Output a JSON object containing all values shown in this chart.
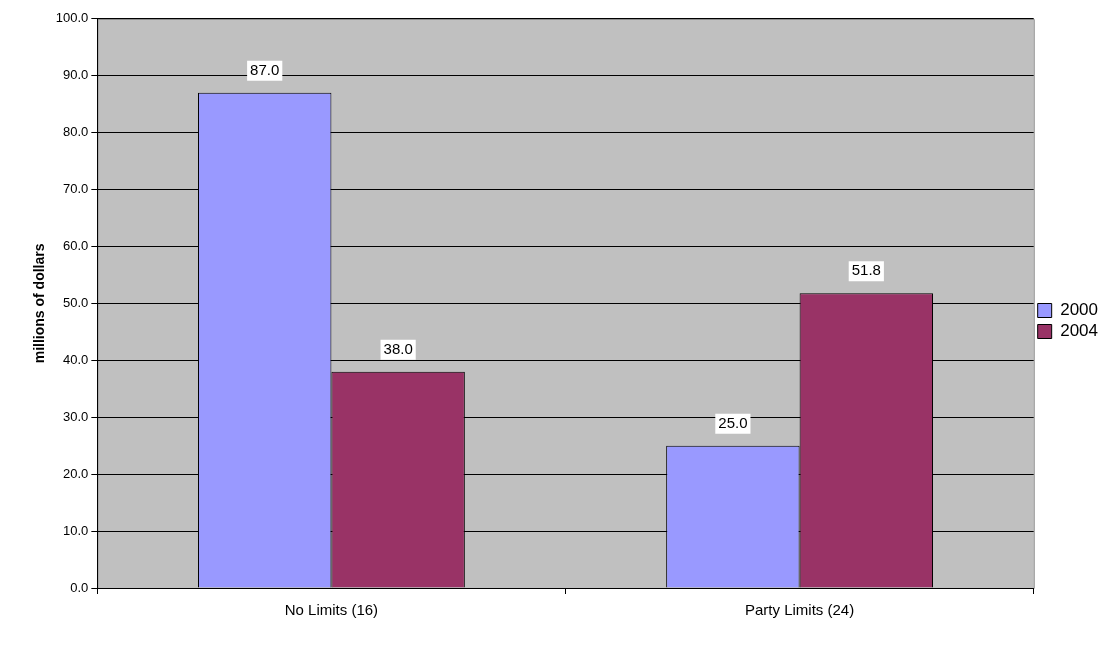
{
  "chart_data": {
    "type": "bar",
    "ylabel": "millions of dollars",
    "categories": [
      "No Limits (16)",
      "Party Limits (24)"
    ],
    "series": [
      {
        "name": "2000",
        "color": "#9999ff",
        "values": [
          87.0,
          25.0
        ],
        "value_labels": [
          "87.0",
          "25.0"
        ]
      },
      {
        "name": "2004",
        "color": "#993366",
        "values": [
          38.0,
          51.8
        ],
        "value_labels": [
          "38.0",
          "51.8"
        ]
      }
    ],
    "ylim": [
      0,
      100
    ],
    "yticks": [
      {
        "value": 0,
        "label": "0.0"
      },
      {
        "value": 10,
        "label": "10.0"
      },
      {
        "value": 20,
        "label": "20.0"
      },
      {
        "value": 30,
        "label": "30.0"
      },
      {
        "value": 40,
        "label": "40.0"
      },
      {
        "value": 50,
        "label": "50.0"
      },
      {
        "value": 60,
        "label": "60.0"
      },
      {
        "value": 70,
        "label": "70.0"
      },
      {
        "value": 80,
        "label": "80.0"
      },
      {
        "value": 90,
        "label": "90.0"
      },
      {
        "value": 100,
        "label": "100.0"
      }
    ],
    "grid": "y",
    "legend": "right"
  }
}
